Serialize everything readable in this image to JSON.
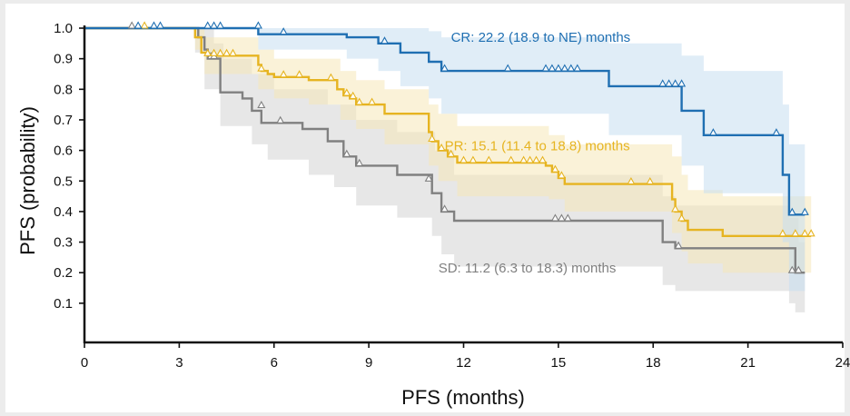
{
  "chart_data": {
    "type": "line",
    "title": "",
    "xlabel": "PFS (months)",
    "ylabel": "PFS (probability)",
    "xlim": [
      0,
      24
    ],
    "ylim": [
      0,
      1.0
    ],
    "xticks": [
      0,
      3,
      6,
      9,
      12,
      15,
      18,
      21,
      24
    ],
    "yticks": [
      0.1,
      0.2,
      0.3,
      0.4,
      0.5,
      0.6,
      0.7,
      0.8,
      0.9,
      1.0
    ],
    "xtick_labels": [
      "0",
      "3",
      "6",
      "9",
      "12",
      "15",
      "18",
      "21",
      "24"
    ],
    "ytick_labels": [
      "0.1",
      "0.2",
      "0.3",
      "0.4",
      "0.5",
      "0.6",
      "0.7",
      "0.8",
      "0.9",
      "1.0"
    ],
    "grid": false,
    "series": [
      {
        "key": "sd",
        "label": "SD: 11.2 (6.3 to 18.3) months",
        "color": "#808080",
        "band_color": "#d4d4d4",
        "label_pos": [
          11.2,
          0.2
        ],
        "steps": [
          [
            0,
            1.0
          ],
          [
            3.6,
            0.97
          ],
          [
            3.8,
            0.93
          ],
          [
            3.9,
            0.9
          ],
          [
            4.3,
            0.79
          ],
          [
            5.0,
            0.77
          ],
          [
            5.3,
            0.73
          ],
          [
            5.6,
            0.69
          ],
          [
            6.9,
            0.67
          ],
          [
            7.7,
            0.63
          ],
          [
            8.2,
            0.58
          ],
          [
            8.6,
            0.55
          ],
          [
            9.9,
            0.52
          ],
          [
            11.0,
            0.46
          ],
          [
            11.3,
            0.4
          ],
          [
            11.7,
            0.37
          ],
          [
            18.3,
            0.3
          ],
          [
            18.7,
            0.28
          ],
          [
            22.5,
            0.2
          ],
          [
            22.8,
            0.2
          ]
        ],
        "upper": [
          [
            0,
            1.0
          ],
          [
            3.6,
            1.0
          ],
          [
            4.1,
            0.95
          ],
          [
            4.4,
            0.9
          ],
          [
            5.3,
            0.85
          ],
          [
            6.0,
            0.8
          ],
          [
            7.7,
            0.75
          ],
          [
            8.6,
            0.7
          ],
          [
            9.9,
            0.66
          ],
          [
            11.1,
            0.6
          ],
          [
            11.7,
            0.52
          ],
          [
            18.3,
            0.45
          ],
          [
            18.7,
            0.42
          ],
          [
            22.3,
            0.38
          ],
          [
            22.6,
            0.3
          ],
          [
            22.8,
            0.3
          ]
        ],
        "lower": [
          [
            0,
            1.0
          ],
          [
            3.5,
            0.92
          ],
          [
            3.8,
            0.8
          ],
          [
            4.3,
            0.68
          ],
          [
            5.3,
            0.62
          ],
          [
            5.8,
            0.57
          ],
          [
            7.1,
            0.52
          ],
          [
            7.9,
            0.48
          ],
          [
            8.6,
            0.42
          ],
          [
            9.9,
            0.38
          ],
          [
            11.0,
            0.32
          ],
          [
            11.3,
            0.26
          ],
          [
            11.7,
            0.22
          ],
          [
            18.3,
            0.16
          ],
          [
            18.7,
            0.14
          ],
          [
            22.3,
            0.1
          ],
          [
            22.5,
            0.07
          ],
          [
            22.8,
            0.07
          ]
        ],
        "censors": [
          [
            1.5,
            1.0
          ],
          [
            4.0,
            0.9
          ],
          [
            4.1,
            0.9
          ],
          [
            5.6,
            0.74
          ],
          [
            6.2,
            0.69
          ],
          [
            8.3,
            0.58
          ],
          [
            8.7,
            0.55
          ],
          [
            10.9,
            0.5
          ],
          [
            11.4,
            0.4
          ],
          [
            14.9,
            0.37
          ],
          [
            15.1,
            0.37
          ],
          [
            15.3,
            0.37
          ],
          [
            18.8,
            0.28
          ],
          [
            22.4,
            0.2
          ],
          [
            22.6,
            0.2
          ]
        ]
      },
      {
        "key": "pr",
        "label": "PR: 15.1 (11.4 to 18.8) months",
        "color": "#e6b421",
        "band_color": "#f5e8b8",
        "label_pos": [
          11.4,
          0.6
        ],
        "steps": [
          [
            0,
            1.0
          ],
          [
            3.5,
            0.97
          ],
          [
            3.7,
            0.92
          ],
          [
            3.9,
            0.91
          ],
          [
            5.5,
            0.88
          ],
          [
            5.6,
            0.86
          ],
          [
            5.8,
            0.85
          ],
          [
            6.0,
            0.84
          ],
          [
            7.1,
            0.83
          ],
          [
            8.0,
            0.8
          ],
          [
            8.2,
            0.78
          ],
          [
            8.4,
            0.77
          ],
          [
            8.6,
            0.75
          ],
          [
            9.5,
            0.72
          ],
          [
            10.9,
            0.66
          ],
          [
            11.0,
            0.63
          ],
          [
            11.2,
            0.6
          ],
          [
            11.5,
            0.58
          ],
          [
            11.8,
            0.56
          ],
          [
            14.6,
            0.55
          ],
          [
            14.8,
            0.53
          ],
          [
            15.0,
            0.51
          ],
          [
            15.2,
            0.49
          ],
          [
            18.6,
            0.44
          ],
          [
            18.7,
            0.4
          ],
          [
            18.9,
            0.37
          ],
          [
            19.1,
            0.34
          ],
          [
            20.2,
            0.32
          ],
          [
            23.0,
            0.32
          ]
        ],
        "upper": [
          [
            0,
            1.0
          ],
          [
            3.5,
            1.0
          ],
          [
            3.8,
            0.97
          ],
          [
            5.5,
            0.93
          ],
          [
            6.0,
            0.9
          ],
          [
            7.1,
            0.9
          ],
          [
            8.1,
            0.86
          ],
          [
            8.6,
            0.83
          ],
          [
            9.5,
            0.8
          ],
          [
            10.9,
            0.75
          ],
          [
            11.2,
            0.72
          ],
          [
            11.8,
            0.68
          ],
          [
            14.7,
            0.65
          ],
          [
            15.2,
            0.62
          ],
          [
            18.6,
            0.58
          ],
          [
            18.9,
            0.52
          ],
          [
            19.1,
            0.47
          ],
          [
            20.2,
            0.45
          ],
          [
            23.0,
            0.45
          ]
        ],
        "lower": [
          [
            0,
            1.0
          ],
          [
            3.5,
            0.93
          ],
          [
            3.8,
            0.85
          ],
          [
            5.5,
            0.8
          ],
          [
            6.0,
            0.77
          ],
          [
            7.1,
            0.75
          ],
          [
            8.1,
            0.7
          ],
          [
            8.6,
            0.67
          ],
          [
            9.5,
            0.62
          ],
          [
            10.9,
            0.55
          ],
          [
            11.2,
            0.5
          ],
          [
            11.8,
            0.45
          ],
          [
            14.7,
            0.44
          ],
          [
            15.2,
            0.4
          ],
          [
            18.6,
            0.33
          ],
          [
            18.9,
            0.27
          ],
          [
            19.1,
            0.23
          ],
          [
            20.2,
            0.2
          ],
          [
            23.0,
            0.2
          ]
        ],
        "censors": [
          [
            1.9,
            1.0
          ],
          [
            3.9,
            0.91
          ],
          [
            4.1,
            0.91
          ],
          [
            4.3,
            0.91
          ],
          [
            4.5,
            0.91
          ],
          [
            4.7,
            0.91
          ],
          [
            5.6,
            0.86
          ],
          [
            6.3,
            0.84
          ],
          [
            6.8,
            0.84
          ],
          [
            7.8,
            0.83
          ],
          [
            8.3,
            0.78
          ],
          [
            8.5,
            0.77
          ],
          [
            8.7,
            0.75
          ],
          [
            9.1,
            0.75
          ],
          [
            11.0,
            0.63
          ],
          [
            11.3,
            0.6
          ],
          [
            11.6,
            0.58
          ],
          [
            12.0,
            0.56
          ],
          [
            12.3,
            0.56
          ],
          [
            12.8,
            0.56
          ],
          [
            13.5,
            0.56
          ],
          [
            13.9,
            0.56
          ],
          [
            14.1,
            0.56
          ],
          [
            14.3,
            0.56
          ],
          [
            14.5,
            0.56
          ],
          [
            14.9,
            0.53
          ],
          [
            15.1,
            0.51
          ],
          [
            17.3,
            0.49
          ],
          [
            17.9,
            0.49
          ],
          [
            18.7,
            0.4
          ],
          [
            18.9,
            0.37
          ],
          [
            22.1,
            0.32
          ],
          [
            22.5,
            0.32
          ],
          [
            22.8,
            0.32
          ],
          [
            23.0,
            0.32
          ]
        ]
      },
      {
        "key": "cr",
        "label": "CR: 22.2 (18.9 to NE) months",
        "color": "#1f6fb2",
        "band_color": "#c6def0",
        "label_pos": [
          11.6,
          0.955
        ],
        "steps": [
          [
            0,
            1.0
          ],
          [
            5.5,
            0.98
          ],
          [
            8.3,
            0.97
          ],
          [
            9.3,
            0.95
          ],
          [
            10.0,
            0.92
          ],
          [
            10.9,
            0.89
          ],
          [
            11.3,
            0.86
          ],
          [
            16.6,
            0.81
          ],
          [
            18.9,
            0.73
          ],
          [
            19.6,
            0.65
          ],
          [
            22.1,
            0.52
          ],
          [
            22.3,
            0.39
          ],
          [
            22.8,
            0.39
          ]
        ],
        "upper": [
          [
            0,
            1.0
          ],
          [
            5.5,
            1.0
          ],
          [
            9.3,
            1.0
          ],
          [
            10.9,
            0.99
          ],
          [
            11.3,
            0.97
          ],
          [
            16.6,
            0.95
          ],
          [
            18.9,
            0.91
          ],
          [
            19.6,
            0.86
          ],
          [
            22.1,
            0.75
          ],
          [
            22.3,
            0.62
          ],
          [
            22.8,
            0.62
          ]
        ],
        "lower": [
          [
            0,
            1.0
          ],
          [
            5.5,
            0.93
          ],
          [
            8.3,
            0.9
          ],
          [
            9.3,
            0.86
          ],
          [
            10.0,
            0.81
          ],
          [
            10.9,
            0.77
          ],
          [
            11.3,
            0.72
          ],
          [
            16.6,
            0.65
          ],
          [
            18.9,
            0.55
          ],
          [
            19.6,
            0.46
          ],
          [
            22.1,
            0.3
          ],
          [
            22.3,
            0.14
          ],
          [
            22.8,
            0.14
          ]
        ],
        "censors": [
          [
            1.7,
            1.0
          ],
          [
            2.2,
            1.0
          ],
          [
            2.4,
            1.0
          ],
          [
            3.9,
            1.0
          ],
          [
            4.1,
            1.0
          ],
          [
            4.3,
            1.0
          ],
          [
            5.5,
            1.0
          ],
          [
            6.3,
            0.98
          ],
          [
            9.5,
            0.95
          ],
          [
            11.4,
            0.86
          ],
          [
            13.4,
            0.86
          ],
          [
            14.6,
            0.86
          ],
          [
            14.8,
            0.86
          ],
          [
            15.0,
            0.86
          ],
          [
            15.2,
            0.86
          ],
          [
            15.4,
            0.86
          ],
          [
            15.6,
            0.86
          ],
          [
            18.3,
            0.81
          ],
          [
            18.5,
            0.81
          ],
          [
            18.7,
            0.81
          ],
          [
            18.9,
            0.81
          ],
          [
            19.9,
            0.65
          ],
          [
            21.9,
            0.65
          ],
          [
            22.4,
            0.39
          ],
          [
            22.8,
            0.39
          ]
        ]
      }
    ]
  }
}
